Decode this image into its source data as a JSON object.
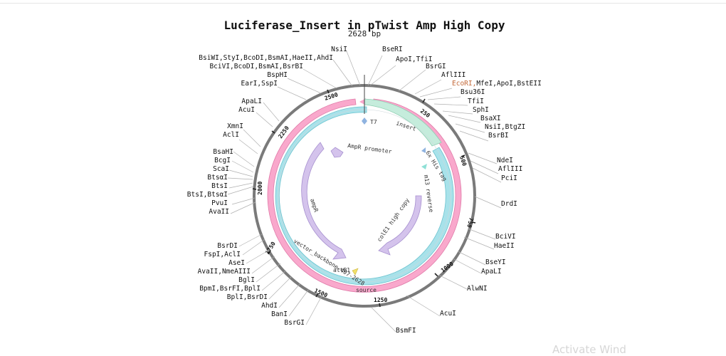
{
  "title": "Luciferase_Insert in pTwist Amp High Copy",
  "length_label": "2628 bp",
  "watermark": "Activate Wind",
  "colors": {
    "backbone": "#f9a8cc",
    "insert": "#c5ecdc",
    "vector": "#a8e2ea",
    "promoter": "#d4c3ec",
    "attB": "#f2e06a",
    "enzyme_highlight": "#c46a3a"
  },
  "ticks": [
    "250",
    "500",
    "750",
    "1000",
    "1250",
    "1500",
    "1750",
    "2000",
    "2250",
    "2500"
  ],
  "features": {
    "insert": "insert",
    "source": "source",
    "vector": "vector_backbone-407-2628",
    "T7": "T7",
    "his": "6x His tag",
    "m13": "m13 reverse",
    "amp_promoter": "AmpR promoter",
    "ampR": "ampR",
    "colE1": "colE1 high copy",
    "attB1": "attB1"
  },
  "enzymes_right": [
    "BseRI",
    "ApoI,TfiI",
    "BsrGI",
    "AflIII",
    "EcoRI,",
    "Bsu36I",
    "TfiI",
    "SphI",
    "BsaXI",
    "NsiI,BtgZI",
    "BsrBI",
    "NdeI",
    "AflIII",
    "PciI",
    "DrdI",
    "BciVI",
    "HaeII",
    "BseYI",
    "ApaLI",
    "AlwNI",
    "AcuI",
    "BsmFI"
  ],
  "ecori_tail": "MfeI,ApoI,BstEII",
  "enzymes_left": [
    "NsiI",
    "BsiWI,StyI,BcoDI,BsmAI,HaeII,AhdI",
    "BciVI,BcoDI,BsmAI,BsrBI",
    "BspHI",
    "EarI,SspI",
    "ApaLI",
    "AcuI",
    "XmnI",
    "AclI",
    "BsaHI",
    "BcgI",
    "ScaI",
    "BtsαI",
    "BtsI",
    "BtsI,BtsαI",
    "PvuI",
    "AvaII",
    "BsrDI",
    "FspI,AclI",
    "AseI",
    "AvaII,NmeAIII",
    "BglI",
    "BpmI,BsrFI,BplI",
    "BplI,BsrDI",
    "AhdI",
    "BanI",
    "BsrGI"
  ]
}
